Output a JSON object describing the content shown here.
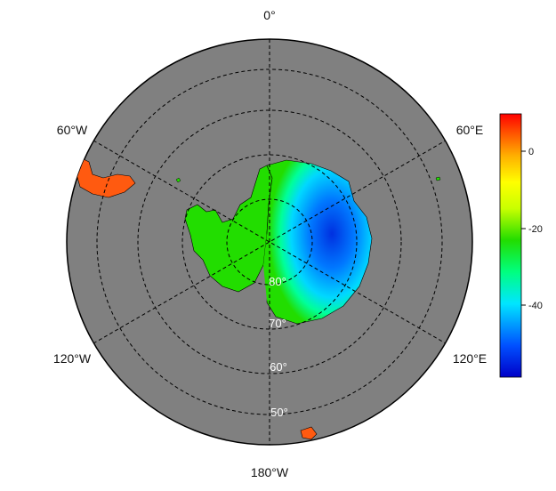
{
  "map": {
    "projection": "south-polar-stereographic",
    "ocean_color": "#808080",
    "meridian_labels": {
      "deg0": "0°",
      "deg60e": "60°E",
      "deg120e": "120°E",
      "deg180w": "180°W",
      "deg120w": "120°W",
      "deg60w": "60°W"
    },
    "latitude_labels": {
      "lat80": "80°",
      "lat70": "70°",
      "lat60": "60°",
      "lat50": "50°"
    }
  },
  "colorbar": {
    "range": [
      -58,
      9
    ],
    "ticks": [
      "0",
      "-20",
      "-40"
    ],
    "colors": [
      "#0000c8",
      "#0050ff",
      "#00e6ff",
      "#00ff7f",
      "#22dd00",
      "#c8ff00",
      "#ffff00",
      "#ffb000",
      "#ff5000",
      "#ff0000"
    ]
  }
}
